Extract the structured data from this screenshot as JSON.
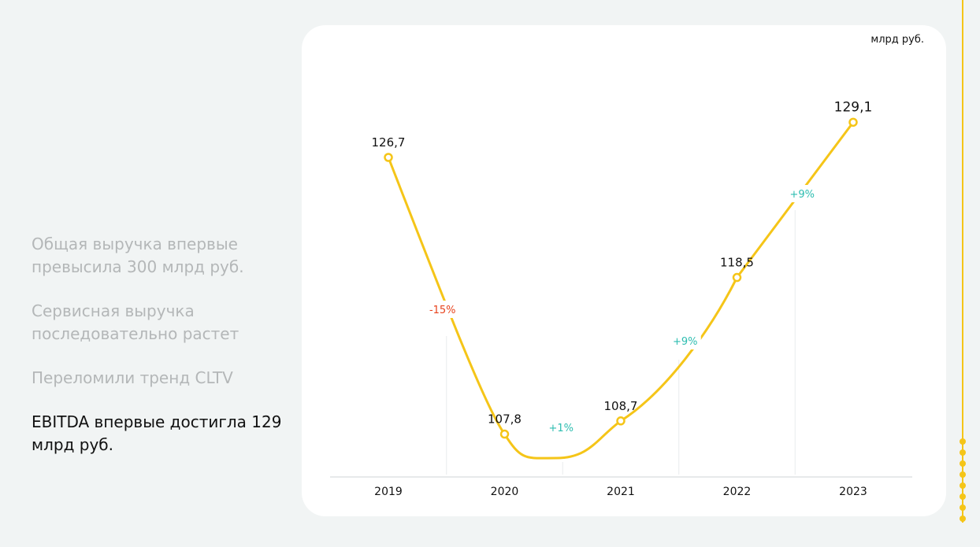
{
  "highlights": [
    {
      "text": "Общая выручка впервые превысила 300 млрд руб.",
      "active": false
    },
    {
      "text": "Сервисная выручка последовательно растет",
      "active": false
    },
    {
      "text": "Переломили тренд CLTV",
      "active": false
    },
    {
      "text": "EBITDA впервые достигла 129 млрд руб.",
      "active": true
    }
  ],
  "colors": {
    "line": "#f5c518",
    "negative": "#e8431d",
    "positive": "#2dbdb0",
    "axis": "#cfd3d5",
    "text": "#111111"
  },
  "chart_data": {
    "type": "line",
    "unit": "млрд руб.",
    "categories": [
      "2019",
      "2020",
      "2021",
      "2022",
      "2023"
    ],
    "values": [
      126.7,
      107.8,
      108.7,
      118.5,
      129.1
    ],
    "value_labels": [
      "126,7",
      "107,8",
      "108,7",
      "118,5",
      "129,1"
    ],
    "changes": [
      "-15%",
      "+1%",
      "+9%",
      "+9%"
    ],
    "change_signs": [
      "negative",
      "positive",
      "positive",
      "positive"
    ]
  },
  "pager": {
    "count": 8
  }
}
